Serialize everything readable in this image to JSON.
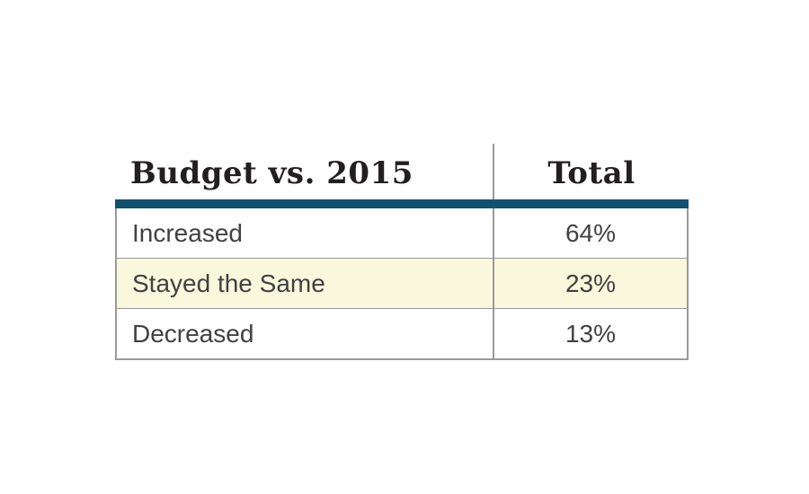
{
  "table": {
    "header": {
      "col1": "Budget vs. 2015",
      "col2": "Total"
    },
    "rows": [
      {
        "label": "Increased",
        "value": "64%",
        "highlighted": false
      },
      {
        "label": "Stayed the Same",
        "value": "23%",
        "highlighted": true
      },
      {
        "label": "Decreased",
        "value": "13%",
        "highlighted": false
      }
    ],
    "colors": {
      "accent_bar": "#11506F",
      "highlight_row": "#FAF8DC",
      "border": "#9A9A9A",
      "header_text": "#231F20",
      "body_text": "#414042",
      "background": "#FFFFFF"
    }
  },
  "chart_data": {
    "type": "table",
    "title": "Budget vs. 2015",
    "columns": [
      "Budget vs. 2015",
      "Total"
    ],
    "rows": [
      [
        "Increased",
        "64%"
      ],
      [
        "Stayed the Same",
        "23%"
      ],
      [
        "Decreased",
        "13%"
      ]
    ],
    "values": {
      "Increased": 64,
      "Stayed the Same": 23,
      "Decreased": 13
    },
    "unit": "percent",
    "highlighted_row": "Stayed the Same"
  }
}
